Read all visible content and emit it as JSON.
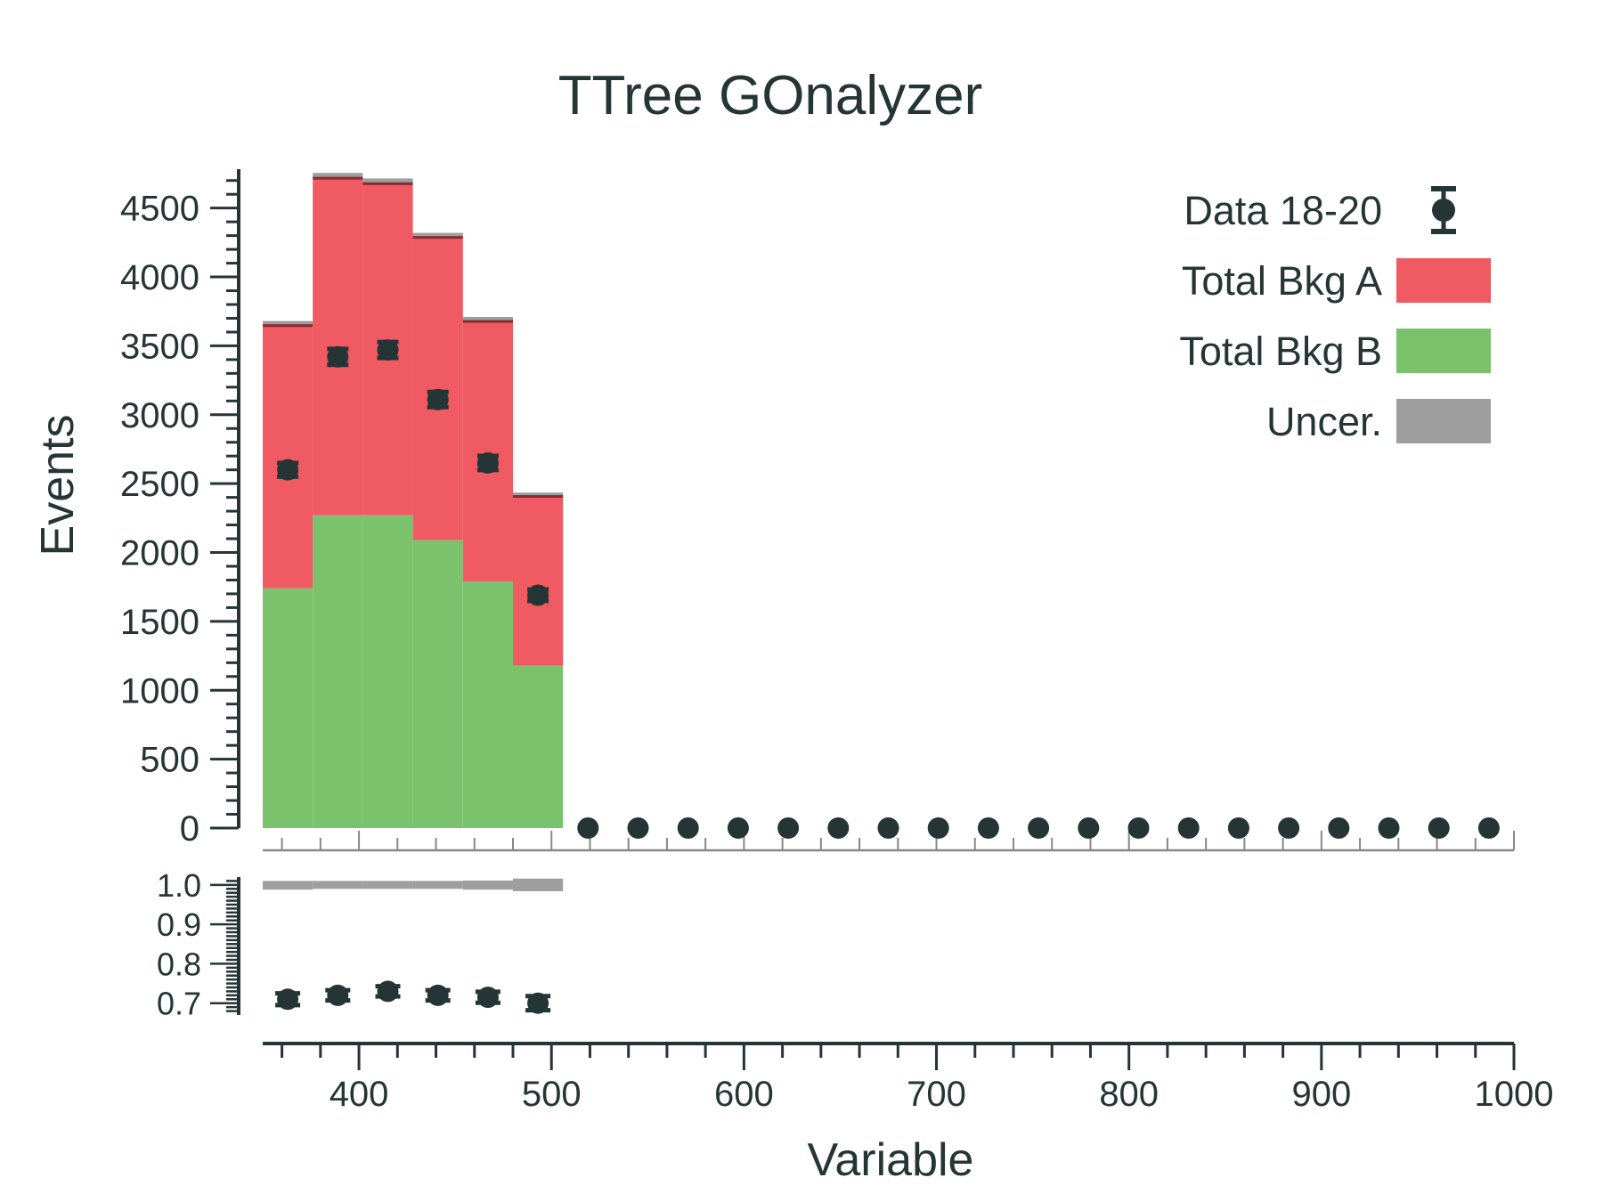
{
  "chart_data": [
    {
      "panel": "main",
      "type": "bar",
      "stacked": true,
      "title": "TTree GOnalyzer",
      "xlabel": "Variable",
      "ylabel": "Events",
      "xlim": [
        350,
        1000
      ],
      "ylim": [
        0,
        4750
      ],
      "y_ticks": [
        0,
        500,
        1000,
        1500,
        2000,
        2500,
        3000,
        3500,
        4000,
        4500
      ],
      "y_tick_labels": [
        "0",
        "500",
        "1000",
        "1500",
        "2000",
        "2500",
        "3000",
        "3500",
        "4000",
        "4500"
      ],
      "bin_edges": [
        350,
        376,
        402,
        428,
        454,
        480,
        506
      ],
      "series": [
        {
          "name": "Total Bkg B",
          "color": "#7bc26c",
          "values": [
            1740,
            2270,
            2270,
            2090,
            1790,
            1180
          ]
        },
        {
          "name": "Total Bkg A",
          "color": "#f05a62",
          "values": [
            1910,
            2450,
            2410,
            2200,
            1890,
            1230
          ]
        },
        {
          "name": "Uncer.",
          "color": "#9e9e9e",
          "values": [
            30,
            35,
            35,
            30,
            30,
            25
          ]
        }
      ],
      "data": {
        "name": "Data 18-20",
        "color": "#253536",
        "x": [
          363,
          389,
          415,
          441,
          467,
          493,
          519,
          545,
          571,
          597,
          623,
          649,
          675,
          701,
          727,
          753,
          779,
          805,
          831,
          857,
          883,
          909,
          935,
          961,
          987
        ],
        "y": [
          2600,
          3420,
          3470,
          3110,
          2650,
          1690,
          0,
          0,
          0,
          0,
          0,
          0,
          0,
          0,
          0,
          0,
          0,
          0,
          0,
          0,
          0,
          0,
          0,
          0,
          0
        ],
        "yerr": [
          50,
          58,
          58,
          55,
          51,
          41,
          0,
          0,
          0,
          0,
          0,
          0,
          0,
          0,
          0,
          0,
          0,
          0,
          0,
          0,
          0,
          0,
          0,
          0,
          0
        ]
      },
      "legend": {
        "placement": "top-right",
        "entries": [
          {
            "label": "Data 18-20",
            "kind": "marker",
            "color": "#253536"
          },
          {
            "label": "Total Bkg A",
            "kind": "box",
            "color": "#f05a62"
          },
          {
            "label": "Total Bkg B",
            "kind": "box",
            "color": "#7bc26c"
          },
          {
            "label": "Uncer.",
            "kind": "box",
            "color": "#9e9e9e"
          }
        ]
      },
      "grid": false
    },
    {
      "panel": "ratio",
      "type": "scatter",
      "xlabel": "Variable",
      "ylabel": "",
      "xlim": [
        350,
        1000
      ],
      "ylim": [
        0.67,
        1.02
      ],
      "x_ticks": [
        400,
        500,
        600,
        700,
        800,
        900,
        1000
      ],
      "x_tick_labels": [
        "400",
        "500",
        "600",
        "700",
        "800",
        "900",
        "1000"
      ],
      "y_ticks": [
        0.7,
        0.8,
        0.9,
        1.0
      ],
      "y_tick_labels": [
        "0.7",
        "0.8",
        "0.9",
        "1.0"
      ],
      "band": {
        "name": "Uncer.",
        "color": "#9e9e9e",
        "bin_edges": [
          350,
          376,
          402,
          428,
          454,
          480,
          506
        ],
        "low": [
          0.988,
          0.99,
          0.99,
          0.99,
          0.988,
          0.984
        ],
        "high": [
          1.01,
          1.01,
          1.01,
          1.01,
          1.011,
          1.016
        ]
      },
      "ratio": {
        "color": "#253536",
        "x": [
          363,
          389,
          415,
          441,
          467,
          493
        ],
        "y": [
          0.71,
          0.72,
          0.73,
          0.72,
          0.715,
          0.7
        ],
        "yerr": [
          0.015,
          0.013,
          0.013,
          0.013,
          0.014,
          0.018
        ]
      },
      "grid": false
    }
  ]
}
